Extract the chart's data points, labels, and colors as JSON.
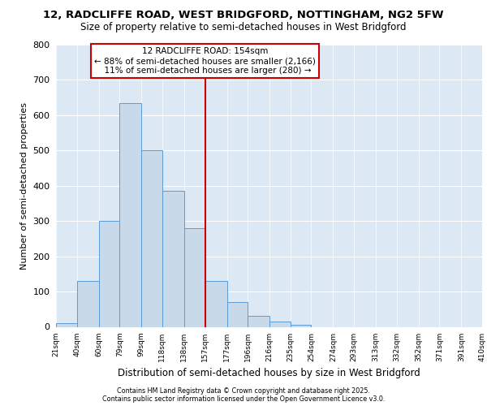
{
  "title_line1": "12, RADCLIFFE ROAD, WEST BRIDGFORD, NOTTINGHAM, NG2 5FW",
  "title_line2": "Size of property relative to semi-detached houses in West Bridgford",
  "xlabel": "Distribution of semi-detached houses by size in West Bridgford",
  "ylabel": "Number of semi-detached properties",
  "bin_labels": [
    "21sqm",
    "40sqm",
    "60sqm",
    "79sqm",
    "99sqm",
    "118sqm",
    "138sqm",
    "157sqm",
    "177sqm",
    "196sqm",
    "216sqm",
    "235sqm",
    "254sqm",
    "274sqm",
    "293sqm",
    "313sqm",
    "332sqm",
    "352sqm",
    "371sqm",
    "391sqm",
    "410sqm"
  ],
  "bin_edges": [
    21,
    40,
    60,
    79,
    99,
    118,
    138,
    157,
    177,
    196,
    216,
    235,
    254,
    274,
    293,
    313,
    332,
    352,
    371,
    391,
    410
  ],
  "bar_heights": [
    10,
    130,
    300,
    635,
    500,
    385,
    280,
    130,
    70,
    30,
    15,
    5,
    0,
    0,
    0,
    0,
    0,
    0,
    0,
    0
  ],
  "bar_color": "#c8daea",
  "bar_edge_color": "#5b9bd5",
  "property_value": 157,
  "pct_smaller": 88,
  "count_smaller": 2166,
  "pct_larger": 11,
  "count_larger": 280,
  "vline_color": "#cc0000",
  "annotation_box_color": "#ffffff",
  "annotation_box_edge": "#cc0000",
  "ylim": [
    0,
    800
  ],
  "yticks": [
    0,
    100,
    200,
    300,
    400,
    500,
    600,
    700,
    800
  ],
  "plot_bg_color": "#dce9f5",
  "figure_bg_color": "#ffffff",
  "grid_color": "#ffffff",
  "footer_line1": "Contains HM Land Registry data © Crown copyright and database right 2025.",
  "footer_line2": "Contains public sector information licensed under the Open Government Licence v3.0."
}
